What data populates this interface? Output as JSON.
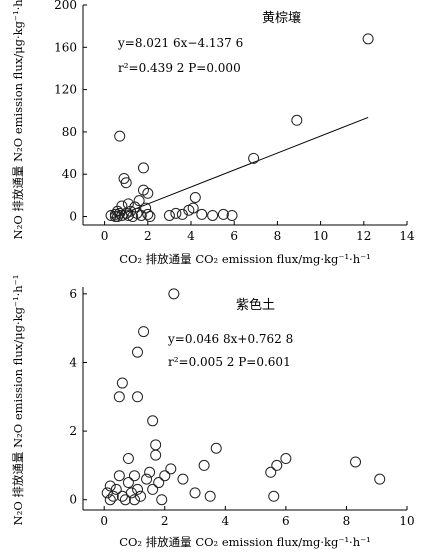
{
  "chart_data": [
    {
      "type": "scatter",
      "title": "黄棕壤",
      "xlabel": "CO₂ 排放通量 CO₂ emission flux/mg·kg⁻¹·h⁻¹",
      "ylabel": "N₂O 排放通量 N₂O emission flux/μg·kg⁻¹·h⁻¹",
      "xlim": [
        -1,
        14
      ],
      "ylim": [
        -8,
        200
      ],
      "xticks": [
        0,
        2,
        4,
        6,
        8,
        10,
        12,
        14
      ],
      "yticks": [
        0,
        40,
        80,
        120,
        160,
        200
      ],
      "xtick_labels": [
        "0",
        "2",
        "4",
        "6",
        "8",
        "10",
        "12",
        "14"
      ],
      "ytick_labels": [
        "0",
        "40",
        "80",
        "120",
        "160",
        "200"
      ],
      "annotations": [
        "y=8.021 6x−4.137 6",
        "r²=0.439 2   P=0.000"
      ],
      "fit": {
        "slope": 8.0216,
        "intercept": -4.1376,
        "x_range": [
          0.4,
          12.2
        ]
      },
      "points": [
        [
          0.3,
          1
        ],
        [
          0.5,
          0
        ],
        [
          0.5,
          2
        ],
        [
          0.6,
          5
        ],
        [
          0.6,
          0
        ],
        [
          0.7,
          3
        ],
        [
          0.7,
          76
        ],
        [
          0.8,
          1
        ],
        [
          0.8,
          10
        ],
        [
          0.9,
          36
        ],
        [
          1.0,
          3
        ],
        [
          1.0,
          32
        ],
        [
          1.1,
          1
        ],
        [
          1.1,
          12
        ],
        [
          1.2,
          5
        ],
        [
          1.3,
          0
        ],
        [
          1.4,
          9
        ],
        [
          1.5,
          3
        ],
        [
          1.6,
          15
        ],
        [
          1.7,
          1
        ],
        [
          1.8,
          25
        ],
        [
          1.8,
          46
        ],
        [
          1.9,
          8
        ],
        [
          2.0,
          22
        ],
        [
          2.0,
          2
        ],
        [
          2.1,
          0
        ],
        [
          3.0,
          1
        ],
        [
          3.3,
          3
        ],
        [
          3.6,
          2
        ],
        [
          3.9,
          6
        ],
        [
          4.1,
          8
        ],
        [
          4.2,
          18
        ],
        [
          4.5,
          2
        ],
        [
          5.0,
          1
        ],
        [
          5.5,
          2
        ],
        [
          5.9,
          1
        ],
        [
          6.9,
          55
        ],
        [
          8.9,
          91
        ],
        [
          12.2,
          168
        ]
      ]
    },
    {
      "type": "scatter",
      "title": "紫色土",
      "xlabel": "CO₂ 排放通量 CO₂ emission flux/mg·kg⁻¹·h⁻¹",
      "ylabel": "N₂O 排放通量 N₂O emission flux/μg·kg⁻¹·h⁻¹",
      "xlim": [
        -0.7,
        10
      ],
      "ylim": [
        -0.3,
        6.2
      ],
      "xticks": [
        0,
        2,
        4,
        6,
        8,
        10
      ],
      "yticks": [
        0,
        2,
        4,
        6
      ],
      "xtick_labels": [
        "0",
        "2",
        "4",
        "6",
        "8",
        "10"
      ],
      "ytick_labels": [
        "0",
        "2",
        "4",
        "6"
      ],
      "annotations": [
        "y=0.046 8x+0.762 8",
        "r²=0.005 2   P=0.601"
      ],
      "points": [
        [
          0.1,
          0.2
        ],
        [
          0.2,
          0.4
        ],
        [
          0.2,
          0.0
        ],
        [
          0.3,
          0.1
        ],
        [
          0.4,
          0.3
        ],
        [
          0.5,
          0.7
        ],
        [
          0.5,
          3.0
        ],
        [
          0.6,
          3.4
        ],
        [
          0.6,
          0.1
        ],
        [
          0.7,
          0.0
        ],
        [
          0.8,
          1.2
        ],
        [
          0.8,
          0.5
        ],
        [
          0.9,
          0.2
        ],
        [
          1.0,
          0.0
        ],
        [
          1.0,
          0.7
        ],
        [
          1.1,
          4.3
        ],
        [
          1.1,
          3.0
        ],
        [
          1.1,
          0.3
        ],
        [
          1.2,
          0.1
        ],
        [
          1.3,
          4.9
        ],
        [
          1.4,
          0.6
        ],
        [
          1.5,
          0.8
        ],
        [
          1.6,
          0.3
        ],
        [
          1.6,
          2.3
        ],
        [
          1.7,
          1.6
        ],
        [
          1.7,
          1.3
        ],
        [
          1.8,
          0.5
        ],
        [
          1.9,
          0.0
        ],
        [
          2.0,
          0.7
        ],
        [
          2.2,
          0.9
        ],
        [
          2.3,
          6.0
        ],
        [
          2.6,
          0.6
        ],
        [
          3.0,
          0.2
        ],
        [
          3.3,
          1.0
        ],
        [
          3.5,
          0.1
        ],
        [
          3.7,
          1.5
        ],
        [
          5.5,
          0.8
        ],
        [
          5.6,
          0.1
        ],
        [
          5.7,
          1.0
        ],
        [
          6.0,
          1.2
        ],
        [
          8.3,
          1.1
        ],
        [
          9.1,
          0.6
        ]
      ]
    }
  ]
}
